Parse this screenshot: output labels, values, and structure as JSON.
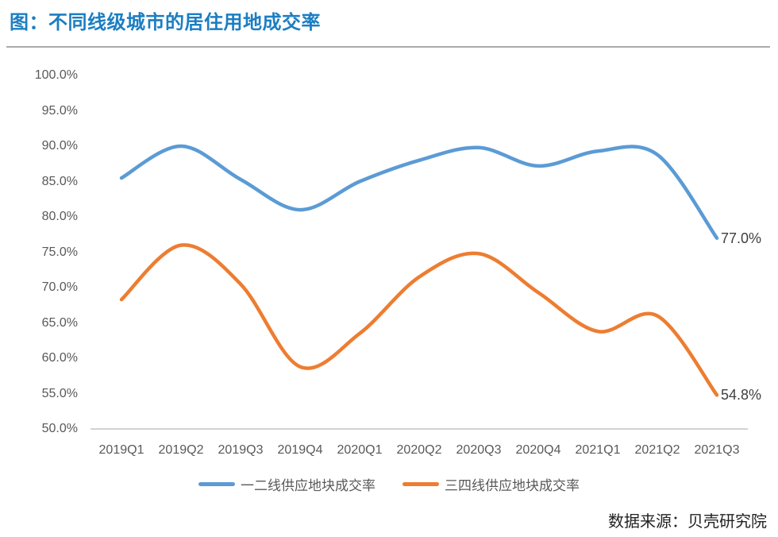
{
  "page": {
    "title": "图：不同线级城市的居住用地成交率",
    "source_note": "数据来源：贝壳研究院"
  },
  "chart_data": {
    "type": "line",
    "smooth": true,
    "title": "图：不同线级城市的居住用地成交率",
    "categories": [
      "2019Q1",
      "2019Q2",
      "2019Q3",
      "2019Q4",
      "2020Q1",
      "2020Q2",
      "2020Q3",
      "2020Q4",
      "2021Q1",
      "2021Q2",
      "2021Q3"
    ],
    "series": [
      {
        "name": "一二线供应地块成交率",
        "color": "#5B9BD5",
        "values": [
          85.5,
          90.0,
          85.3,
          81.0,
          85.0,
          88.0,
          89.8,
          87.2,
          89.3,
          88.8,
          77.0
        ],
        "end_label": "77.0%"
      },
      {
        "name": "三四线供应地块成交率",
        "color": "#ED7D31",
        "values": [
          68.3,
          76.0,
          70.5,
          58.8,
          63.5,
          71.5,
          74.8,
          69.3,
          63.8,
          66.0,
          54.8
        ],
        "end_label": "54.8%"
      }
    ],
    "ylim": [
      50,
      100
    ],
    "ytick_step": 5,
    "ytick_labels": [
      "100.0%",
      "95.0%",
      "90.0%",
      "85.0%",
      "80.0%",
      "75.0%",
      "70.0%",
      "65.0%",
      "60.0%",
      "55.0%",
      "50.0%"
    ],
    "xlabel": "",
    "ylabel": "",
    "grid": false,
    "legend_position": "bottom"
  },
  "colors": {
    "title": "#1B7EC2",
    "divider": "#ABABAB",
    "axis_line": "#D2D2D2",
    "axis_text": "#595959",
    "end_label_text": "#3F3F3F",
    "footer_text": "#222222"
  }
}
